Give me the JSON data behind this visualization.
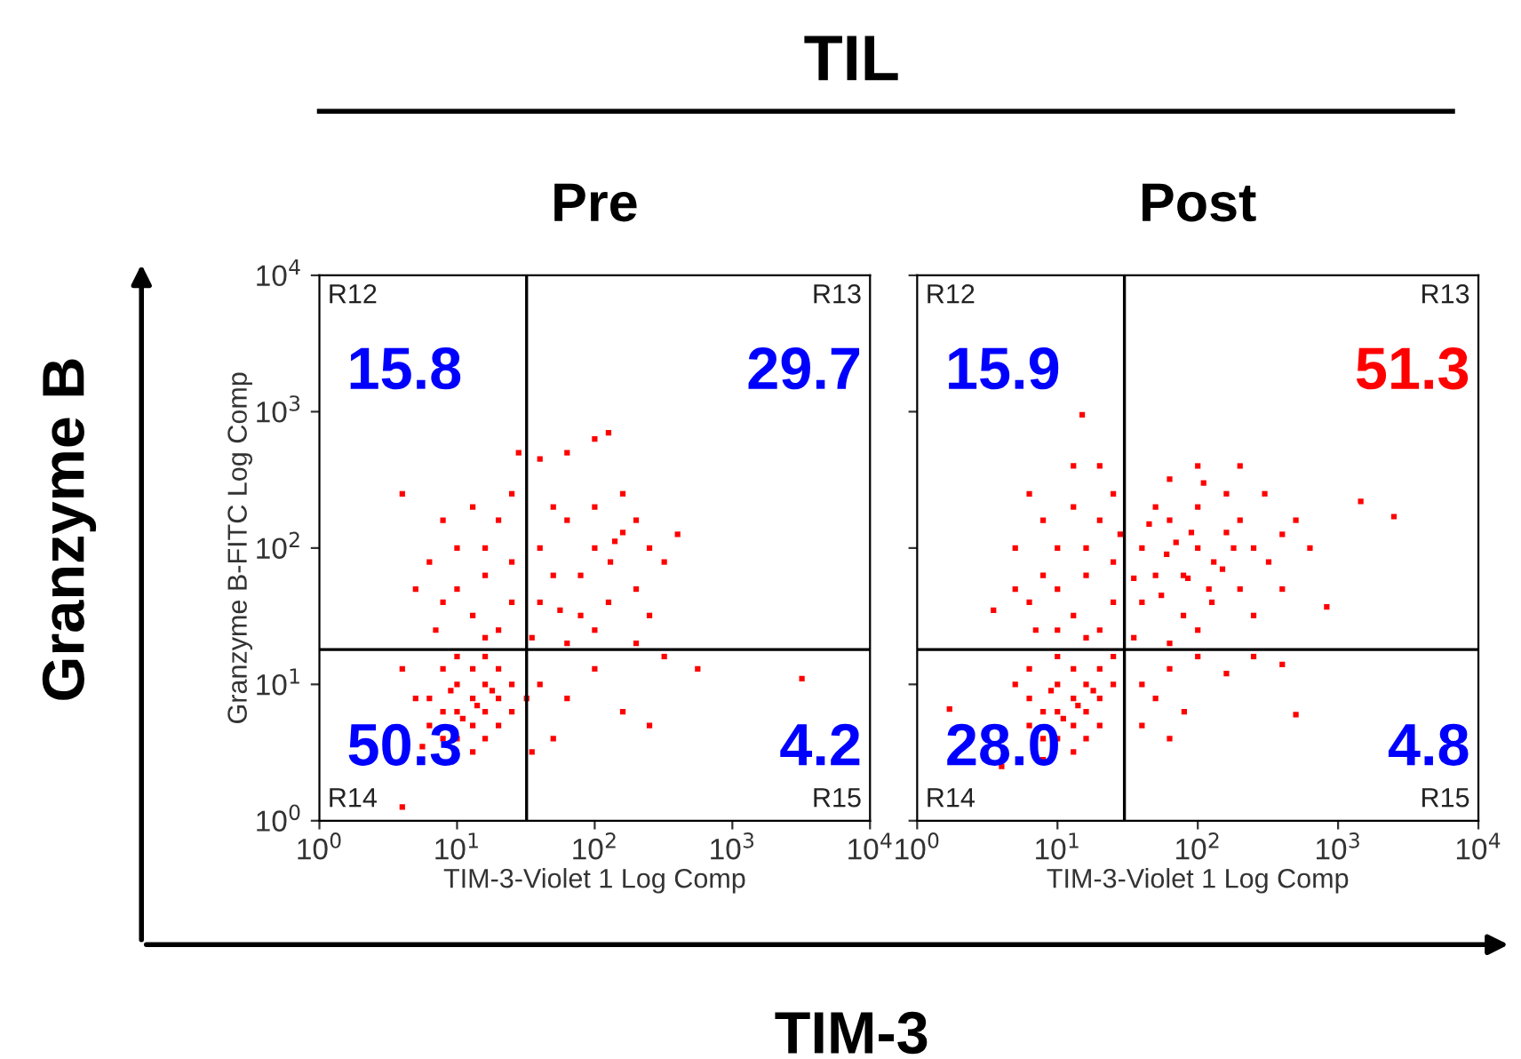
{
  "chart_data": [
    {
      "type": "scatter",
      "title": "Pre",
      "xlabel": "TIM-3-Violet 1 Log Comp",
      "ylabel": "Granzyme B-FITC Log Comp",
      "log": "xy",
      "marker": "square",
      "grid": false,
      "legend": false,
      "xlim": [
        1,
        10000
      ],
      "ylim": [
        1,
        10000
      ],
      "xticks": [
        {
          "value": 1,
          "label": "10$^{0}$"
        },
        {
          "value": 10,
          "label": "10$^{1}$"
        },
        {
          "value": 100,
          "label": "10$^{2}$"
        },
        {
          "value": 1000,
          "label": "10$^{3}$"
        },
        {
          "value": 10000,
          "label": "10$^{4}$"
        }
      ],
      "yticks": [
        {
          "value": 1,
          "label": "10$^{0}$"
        },
        {
          "value": 10,
          "label": "10$^{1}$"
        },
        {
          "value": 100,
          "label": "10$^{2}$"
        },
        {
          "value": 1000,
          "label": "10$^{3}$"
        },
        {
          "value": 10000,
          "label": "10$^{4}$"
        }
      ],
      "ref_lines": [
        {
          "axis": "x",
          "value": 32,
          "color": "#000000"
        },
        {
          "axis": "y",
          "value": 18,
          "color": "#000000"
        }
      ],
      "series": [
        {
          "color": "#ff0000",
          "x": [
            10,
            13,
            16,
            13,
            10,
            16,
            7.9,
            7.9,
            20,
            13,
            10,
            16,
            6.3,
            20,
            25,
            6.3,
            13,
            10,
            5,
            20,
            14,
            11,
            18,
            9,
            25,
            32,
            4,
            16,
            7.9,
            5.6,
            4,
            6.3,
            7.9,
            10,
            13,
            16,
            20,
            25,
            7,
            13,
            20,
            16,
            10,
            5,
            25,
            4,
            25,
            7.9,
            16,
            28,
            50,
            100,
            160,
            63,
            200,
            79,
            130,
            250,
            40,
            100,
            50,
            160,
            320,
            63,
            126,
            40,
            200,
            79,
            400,
            100,
            35,
            250,
            100,
            126,
            63,
            40,
            200,
            56,
            140,
            40,
            63,
            100,
            50,
            160,
            320,
            560,
            3200,
            250,
            35
          ],
          "values": [
            6.3,
            7.9,
            6.3,
            5,
            10,
            10,
            6.3,
            4,
            7.9,
            13,
            4,
            4,
            7.9,
            13,
            6.3,
            5,
            3.2,
            16,
            7.9,
            5,
            7,
            5.6,
            9,
            9,
            10,
            7.9,
            13,
            16,
            13,
            3.5,
            1.26,
            79,
            40,
            100,
            32,
            63,
            160,
            40,
            25,
            200,
            25,
            100,
            50,
            50,
            250,
            250,
            79,
            160,
            22,
            500,
            63,
            100,
            130,
            160,
            50,
            32,
            79,
            100,
            40,
            25,
            200,
            250,
            79,
            20,
            40,
            100,
            160,
            63,
            126,
            200,
            22,
            32,
            630,
            700,
            500,
            450,
            20,
            35,
            112,
            10,
            7.9,
            13,
            4,
            6.3,
            16,
            13,
            11,
            5,
            3.2
          ]
        }
      ],
      "annotations": [
        "TIL",
        "Granzyme B",
        "TIM-3",
        "R12",
        "R13",
        "R14",
        "R15",
        "15.8",
        "29.7",
        "50.3",
        "4.2"
      ]
    },
    {
      "type": "scatter",
      "title": "Post",
      "xlabel": "TIM-3-Violet 1 Log Comp",
      "log": "xy",
      "marker": "square",
      "grid": false,
      "legend": false,
      "tick_labels": "x",
      "xlim": [
        1,
        10000
      ],
      "ylim": [
        1,
        10000
      ],
      "xticks": [
        {
          "value": 1,
          "label": "10$^{0}$"
        },
        {
          "value": 10,
          "label": "10$^{1}$"
        },
        {
          "value": 100,
          "label": "10$^{2}$"
        },
        {
          "value": 1000,
          "label": "10$^{3}$"
        },
        {
          "value": 10000,
          "label": "10$^{4}$"
        }
      ],
      "yticks": [
        {
          "value": 1,
          "label": null
        },
        {
          "value": 10,
          "label": null
        },
        {
          "value": 100,
          "label": null
        },
        {
          "value": 1000,
          "label": null
        },
        {
          "value": 10000,
          "label": null
        }
      ],
      "ref_lines": [
        {
          "axis": "x",
          "value": 30,
          "color": "#000000"
        },
        {
          "axis": "y",
          "value": 18,
          "color": "#000000"
        }
      ],
      "series": [
        {
          "color": "#ff0000",
          "x": [
            10,
            13,
            16,
            13,
            10,
            16,
            7.9,
            7.9,
            20,
            13,
            10,
            16,
            6.3,
            20,
            25,
            6.3,
            13,
            10,
            5,
            20,
            14,
            11,
            18,
            9,
            6.3,
            25,
            1.7,
            4,
            7.9,
            6.3,
            7.9,
            10,
            13,
            16,
            20,
            25,
            7,
            13,
            20,
            16,
            10,
            5,
            25,
            6.3,
            25,
            7.9,
            16,
            15,
            13,
            20,
            5,
            28,
            10,
            3.5,
            50,
            100,
            160,
            63,
            200,
            79,
            130,
            250,
            40,
            100,
            50,
            160,
            320,
            63,
            126,
            40,
            200,
            79,
            400,
            100,
            35,
            250,
            100,
            63,
            200,
            300,
            500,
            630,
            85,
            120,
            70,
            150,
            90,
            55,
            45,
            110,
            180,
            400,
            35,
            60,
            1450,
            2500,
            830,
            40,
            63,
            100,
            50,
            160,
            250,
            80,
            40,
            400,
            63,
            500
          ],
          "values": [
            6.3,
            7.9,
            6.3,
            5,
            10,
            10,
            6.3,
            4,
            7.9,
            13,
            4,
            4,
            7.9,
            13,
            10,
            5,
            3.2,
            16,
            10,
            5,
            7,
            5.6,
            9,
            9,
            13,
            16,
            6.6,
            2.5,
            2.8,
            40,
            63,
            100,
            32,
            63,
            160,
            40,
            25,
            200,
            25,
            100,
            50,
            50,
            250,
            250,
            79,
            160,
            22,
            950,
            400,
            400,
            100,
            126,
            25,
            35,
            63,
            100,
            130,
            160,
            50,
            32,
            79,
            100,
            40,
            25,
            200,
            250,
            79,
            20,
            40,
            100,
            160,
            63,
            126,
            200,
            22,
            32,
            400,
            320,
            400,
            250,
            160,
            100,
            60,
            50,
            110,
            70,
            130,
            45,
            150,
            300,
            100,
            50,
            60,
            90,
            220,
            170,
            37,
            10,
            13,
            16,
            7.9,
            12,
            16,
            6.3,
            5,
            14,
            4,
            6
          ]
        }
      ],
      "annotations": [
        "R12",
        "R13",
        "R14",
        "R15",
        "15.9",
        "51.3",
        "28.0",
        "4.8"
      ]
    }
  ]
}
